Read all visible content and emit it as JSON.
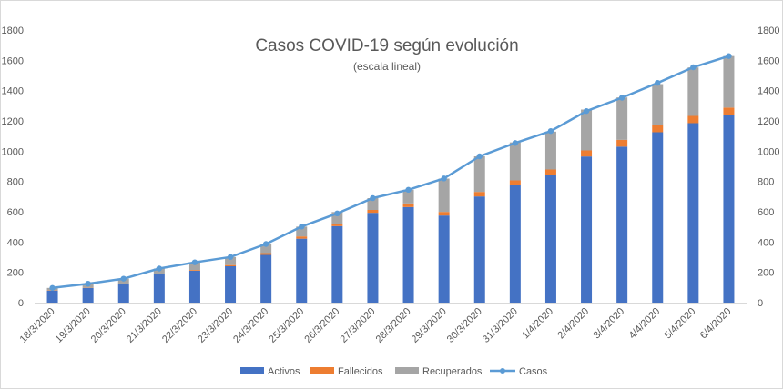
{
  "chart_data": {
    "type": "bar",
    "stacked": true,
    "title": "Casos COVID-19 según evolución",
    "subtitle": "(escala lineal)",
    "categories": [
      "18/3/2020",
      "19/3/2020",
      "20/3/2020",
      "21/3/2020",
      "22/3/2020",
      "23/3/2020",
      "24/3/2020",
      "25/3/2020",
      "26/3/2020",
      "27/3/2020",
      "28/3/2020",
      "29/3/2020",
      "30/3/2020",
      "31/3/2020",
      "1/4/2020",
      "2/4/2020",
      "3/4/2020",
      "4/4/2020",
      "5/4/2020",
      "6/4/2020"
    ],
    "series": [
      {
        "name": "Activos",
        "type": "bar",
        "color": "#4472c4",
        "values": [
          79,
          96,
          121,
          187,
          210,
          240,
          315,
          422,
          505,
          593,
          631,
          575,
          701,
          775,
          845,
          965,
          1030,
          1125,
          1185,
          1240
        ]
      },
      {
        "name": "Fallecidos",
        "type": "bar",
        "color": "#ed7d31",
        "values": [
          2,
          2,
          3,
          3,
          5,
          8,
          12,
          15,
          15,
          19,
          24,
          24,
          30,
          32,
          34,
          40,
          45,
          48,
          48,
          48
        ]
      },
      {
        "name": "Recuperados",
        "type": "bar",
        "color": "#a5a5a5",
        "values": [
          16,
          27,
          34,
          35,
          51,
          53,
          60,
          65,
          78,
          78,
          90,
          220,
          235,
          251,
          250,
          270,
          280,
          270,
          320,
          340
        ]
      },
      {
        "name": "Casos",
        "type": "line",
        "color": "#5b9bd5",
        "values": [
          97,
          125,
          158,
          225,
          266,
          301,
          387,
          502,
          589,
          690,
          745,
          820,
          966,
          1054,
          1133,
          1265,
          1353,
          1451,
          1554,
          1628
        ]
      }
    ],
    "ylim": [
      0,
      1800
    ],
    "yticks": [
      "0",
      "200",
      "400",
      "600",
      "800",
      "1000",
      "1200",
      "1400",
      "1600",
      "1800"
    ],
    "secondary_axis": true,
    "grid": false,
    "legend_position": "bottom",
    "legend": [
      "Activos",
      "Fallecidos",
      "Recuperados",
      "Casos"
    ]
  }
}
